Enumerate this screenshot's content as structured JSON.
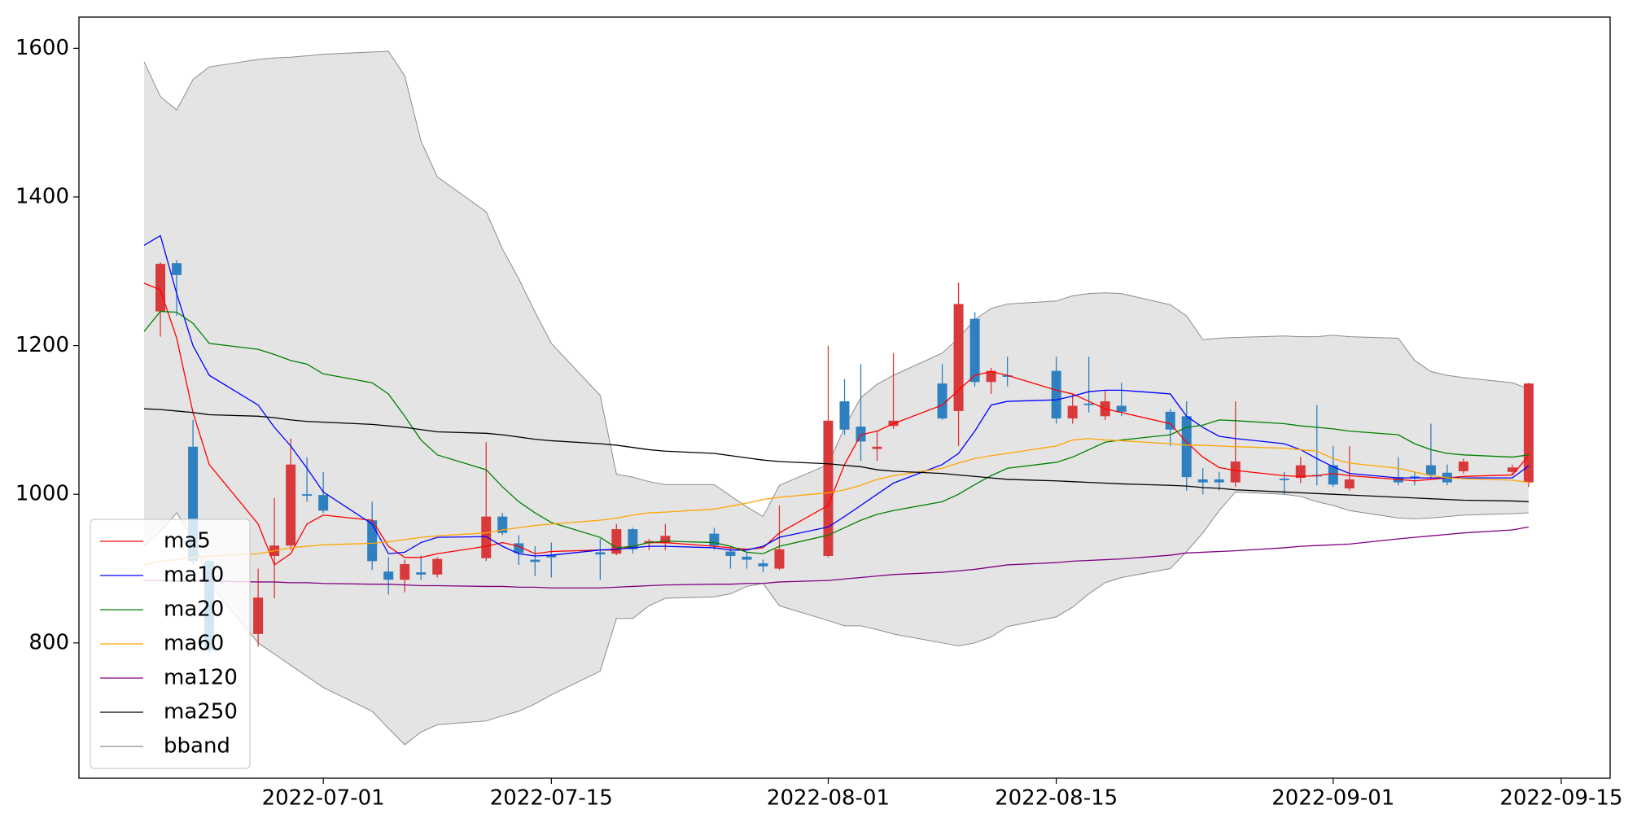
{
  "chart_data": {
    "type": "candlestick",
    "x": [
      "2022-06-20",
      "2022-06-21",
      "2022-06-22",
      "2022-06-23",
      "2022-06-24",
      "2022-06-27",
      "2022-06-28",
      "2022-06-29",
      "2022-06-30",
      "2022-07-01",
      "2022-07-04",
      "2022-07-05",
      "2022-07-06",
      "2022-07-07",
      "2022-07-08",
      "2022-07-11",
      "2022-07-12",
      "2022-07-13",
      "2022-07-14",
      "2022-07-15",
      "2022-07-18",
      "2022-07-19",
      "2022-07-20",
      "2022-07-21",
      "2022-07-22",
      "2022-07-25",
      "2022-07-26",
      "2022-07-27",
      "2022-07-28",
      "2022-07-29",
      "2022-08-01",
      "2022-08-02",
      "2022-08-03",
      "2022-08-04",
      "2022-08-05",
      "2022-08-08",
      "2022-08-09",
      "2022-08-10",
      "2022-08-11",
      "2022-08-12",
      "2022-08-15",
      "2022-08-16",
      "2022-08-17",
      "2022-08-18",
      "2022-08-19",
      "2022-08-22",
      "2022-08-23",
      "2022-08-24",
      "2022-08-25",
      "2022-08-26",
      "2022-08-29",
      "2022-08-30",
      "2022-08-31",
      "2022-09-01",
      "2022-09-02",
      "2022-09-05",
      "2022-09-06",
      "2022-09-07",
      "2022-09-08",
      "2022-09-09",
      "2022-09-12",
      "2022-09-13"
    ],
    "open": [
      null,
      1246,
      1311,
      1064,
      910,
      812,
      917,
      931,
      1000,
      999,
      965,
      896,
      885,
      895,
      892,
      914,
      970,
      934,
      912,
      918,
      922,
      920,
      953,
      934,
      934,
      947,
      923,
      916,
      907,
      900,
      917,
      1125,
      1091,
      1061,
      1092,
      1149,
      1112,
      1236,
      1151,
      1160,
      1166,
      1102,
      1122,
      1105,
      1119,
      1111,
      1105,
      1020,
      1020,
      1016,
      1021,
      1022,
      1026,
      1039,
      1008,
      1023,
      1024,
      1039,
      1029,
      1031,
      1030,
      1016
    ],
    "high": [
      null,
      1312,
      1315,
      1100,
      912,
      900,
      995,
      1075,
      1050,
      1030,
      990,
      915,
      912,
      918,
      915,
      1070,
      975,
      945,
      930,
      935,
      940,
      960,
      955,
      940,
      960,
      955,
      928,
      922,
      912,
      985,
      1200,
      1155,
      1175,
      1085,
      1190,
      1175,
      1285,
      1245,
      1170,
      1185,
      1185,
      1135,
      1185,
      1140,
      1150,
      1115,
      1125,
      1035,
      1030,
      1125,
      1030,
      1050,
      1120,
      1065,
      1065,
      1050,
      1030,
      1095,
      1040,
      1048,
      1040,
      1150
    ],
    "low": [
      null,
      1212,
      1240,
      905,
      785,
      795,
      860,
      925,
      990,
      975,
      898,
      865,
      868,
      885,
      888,
      910,
      945,
      905,
      890,
      888,
      885,
      918,
      920,
      925,
      925,
      925,
      900,
      900,
      895,
      898,
      915,
      1080,
      1045,
      1045,
      1088,
      1100,
      1065,
      1145,
      1135,
      1145,
      1095,
      1095,
      1110,
      1100,
      1105,
      1065,
      1005,
      1000,
      1005,
      1010,
      1000,
      1015,
      1012,
      1010,
      1005,
      1012,
      1012,
      1020,
      1012,
      1028,
      1025,
      1010
    ],
    "close": [
      null,
      1310,
      1295,
      910,
      790,
      861,
      931,
      1040,
      998,
      978,
      910,
      885,
      906,
      892,
      913,
      970,
      948,
      921,
      909,
      915,
      919,
      953,
      926,
      937,
      944,
      931,
      917,
      912,
      903,
      926,
      1099,
      1087,
      1071,
      1064,
      1099,
      1102,
      1256,
      1151,
      1166,
      1158,
      1102,
      1119,
      1120,
      1125,
      1111,
      1087,
      1023,
      1016,
      1016,
      1044,
      1019,
      1039,
      1024,
      1013,
      1020,
      1016,
      1022,
      1026,
      1016,
      1044,
      1036,
      1149
    ],
    "up_color": "#d8393b",
    "down_color": "#2f80c0",
    "lines": [
      {
        "name": "ma5",
        "color": "#ff0000",
        "values": [
          1284,
          1275,
          1210,
          1110,
          1040,
          960,
          905,
          920,
          960,
          972,
          965,
          930,
          915,
          915,
          920,
          930,
          935,
          930,
          920,
          923,
          925,
          925,
          930,
          935,
          935,
          930,
          928,
          926,
          928,
          948,
          985,
          1040,
          1080,
          1085,
          1095,
          1120,
          1140,
          1160,
          1165,
          1160,
          1140,
          1135,
          1125,
          1115,
          1110,
          1095,
          1070,
          1050,
          1036,
          1032,
          1025,
          1024,
          1025,
          1028,
          1025,
          1020,
          1018,
          1020,
          1022,
          1024,
          1026,
          1052
        ]
      },
      {
        "name": "ma10",
        "color": "#0000ff",
        "values": [
          1335,
          1348,
          1270,
          1200,
          1160,
          1120,
          1090,
          1065,
          1035,
          1003,
          960,
          920,
          922,
          935,
          942,
          943,
          930,
          920,
          917,
          918,
          925,
          926,
          928,
          930,
          930,
          928,
          925,
          925,
          930,
          942,
          956,
          970,
          985,
          1000,
          1015,
          1040,
          1055,
          1085,
          1120,
          1125,
          1127,
          1132,
          1138,
          1140,
          1140,
          1135,
          1105,
          1090,
          1078,
          1075,
          1068,
          1060,
          1048,
          1037,
          1028,
          1022,
          1022,
          1022,
          1022,
          1022,
          1022,
          1038
        ]
      },
      {
        "name": "ma20",
        "color": "#008000",
        "values": [
          1219,
          1246,
          1245,
          1230,
          1203,
          1195,
          1188,
          1180,
          1175,
          1162,
          1150,
          1135,
          1105,
          1073,
          1053,
          1033,
          1010,
          990,
          975,
          962,
          942,
          928,
          930,
          935,
          937,
          935,
          930,
          922,
          920,
          930,
          945,
          955,
          965,
          973,
          978,
          990,
          1000,
          1013,
          1025,
          1035,
          1043,
          1050,
          1060,
          1070,
          1073,
          1080,
          1090,
          1093,
          1100,
          1099,
          1095,
          1092,
          1090,
          1088,
          1085,
          1080,
          1068,
          1060,
          1055,
          1053,
          1050,
          1053
        ]
      },
      {
        "name": "ma60",
        "color": "#ffa500",
        "values": [
          905,
          910,
          912,
          915,
          917,
          920,
          924,
          928,
          930,
          932,
          934,
          936,
          939,
          942,
          944,
          948,
          952,
          955,
          958,
          960,
          965,
          968,
          972,
          975,
          976,
          980,
          984,
          988,
          993,
          996,
          1002,
          1006,
          1012,
          1020,
          1025,
          1035,
          1042,
          1048,
          1052,
          1055,
          1065,
          1073,
          1075,
          1073,
          1072,
          1068,
          1066,
          1066,
          1065,
          1064,
          1062,
          1060,
          1058,
          1048,
          1042,
          1035,
          1030,
          1025,
          1022,
          1021,
          1019,
          1016
        ]
      },
      {
        "name": "ma120",
        "color": "#800080",
        "values": [
          884,
          884,
          883,
          883,
          883,
          882,
          882,
          881,
          881,
          880,
          879,
          879,
          878,
          877,
          877,
          876,
          876,
          875,
          875,
          874,
          874,
          875,
          876,
          877,
          878,
          879,
          879,
          880,
          880,
          882,
          884,
          886,
          888,
          890,
          892,
          895,
          897,
          899,
          902,
          905,
          908,
          910,
          911,
          912,
          913,
          918,
          921,
          922,
          923,
          924,
          928,
          930,
          931,
          932,
          933,
          940,
          942,
          944,
          946,
          948,
          952,
          956
        ]
      },
      {
        "name": "ma250",
        "color": "#000000",
        "values": [
          1115,
          1114,
          1112,
          1110,
          1107,
          1105,
          1103,
          1100,
          1098,
          1097,
          1094,
          1092,
          1090,
          1087,
          1084,
          1082,
          1080,
          1077,
          1074,
          1072,
          1068,
          1066,
          1063,
          1060,
          1058,
          1055,
          1052,
          1049,
          1046,
          1044,
          1041,
          1039,
          1037,
          1033,
          1031,
          1028,
          1026,
          1024,
          1022,
          1020,
          1018,
          1017,
          1016,
          1015,
          1014,
          1012,
          1011,
          1009,
          1008,
          1006,
          1003,
          1002,
          1001,
          1000,
          999,
          996,
          995,
          994,
          993,
          992,
          991,
          990
        ]
      }
    ],
    "bband": {
      "name": "bband",
      "color": "#8c8c8c",
      "fill": "#e4e4e4",
      "upper": [
        1582,
        1535,
        1517,
        1558,
        1575,
        1585,
        1587,
        1588,
        1590,
        1592,
        1595,
        1596,
        1563,
        1475,
        1427,
        1380,
        1330,
        1290,
        1245,
        1203,
        1133,
        1027,
        1023,
        1017,
        1013,
        1013,
        998,
        983,
        970,
        1012,
        1040,
        1090,
        1130,
        1148,
        1160,
        1190,
        1210,
        1235,
        1250,
        1256,
        1260,
        1267,
        1270,
        1271,
        1270,
        1255,
        1240,
        1208,
        1210,
        1211,
        1213,
        1212,
        1212,
        1214,
        1212,
        1210,
        1180,
        1165,
        1160,
        1157,
        1150,
        1142
      ],
      "lower": [
        930,
        950,
        975,
        940,
        880,
        800,
        785,
        770,
        755,
        740,
        708,
        685,
        663,
        680,
        690,
        695,
        702,
        708,
        718,
        730,
        762,
        833,
        833,
        850,
        860,
        862,
        866,
        876,
        880,
        850,
        830,
        823,
        823,
        818,
        812,
        800,
        796,
        800,
        808,
        822,
        835,
        848,
        866,
        881,
        888,
        900,
        923,
        948,
        978,
        1003,
        1000,
        997,
        990,
        985,
        978,
        968,
        967,
        968,
        970,
        972,
        974,
        975
      ]
    },
    "xlim": [
      "2022-06-16",
      "2022-09-18"
    ],
    "xticks": [
      "2022-07-01",
      "2022-07-15",
      "2022-08-01",
      "2022-08-15",
      "2022-09-01",
      "2022-09-15"
    ],
    "ylim": [
      618,
      1642
    ],
    "yticks": [
      800,
      1000,
      1200,
      1400,
      1600
    ],
    "legend": "lower left"
  }
}
